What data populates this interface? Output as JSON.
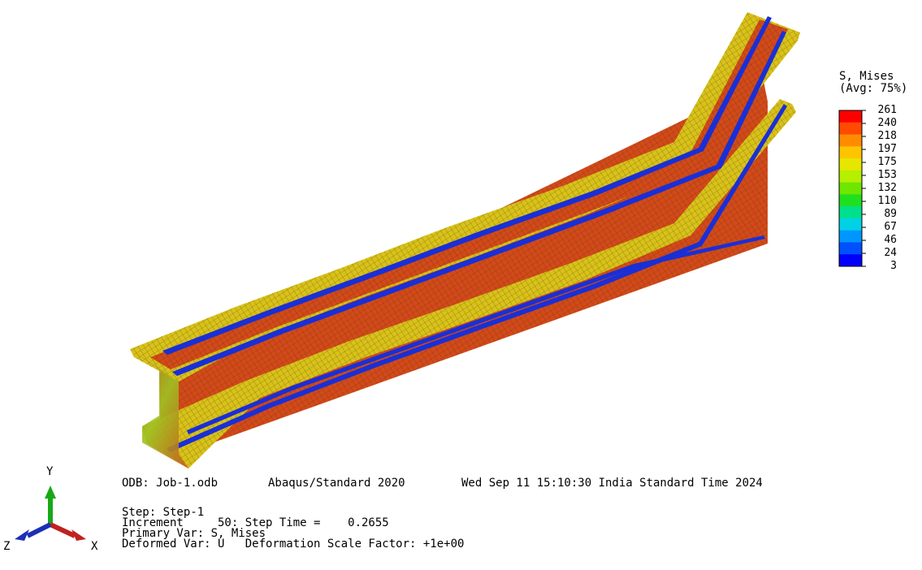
{
  "legend": {
    "title_line1": "S, Mises",
    "title_line2": "(Avg: 75%)",
    "values": [
      "261",
      "240",
      "218",
      "197",
      "175",
      "153",
      "132",
      "110",
      "89",
      "67",
      "46",
      "24",
      "3"
    ],
    "colors": [
      "#ff0000",
      "#ff4a00",
      "#ff8c00",
      "#ffc400",
      "#e6e600",
      "#b4f000",
      "#6ee600",
      "#1fe01f",
      "#00e08c",
      "#00d2e6",
      "#0096ff",
      "#0050ff",
      "#0000ff"
    ]
  },
  "info": {
    "odb": "ODB: Job-1.odb",
    "version": "Abaqus/Standard 2020",
    "date": "Wed Sep 11 15:10:30 India Standard Time 2024",
    "step": "Step: Step-1",
    "increment": "Increment     50: Step Time =    0.2655",
    "primary_var": "Primary Var: S, Mises",
    "deformed_var": "Deformed Var: U   Deformation Scale Factor: +1e+00"
  },
  "triad": {
    "y_label": "Y",
    "x_label": "X",
    "z_label": "Z"
  },
  "colors": {
    "web": "#d24a1a",
    "flange_edge": "#d8c21a",
    "blue_band": "#1a2fd6",
    "mesh_line": "#3a2200"
  }
}
